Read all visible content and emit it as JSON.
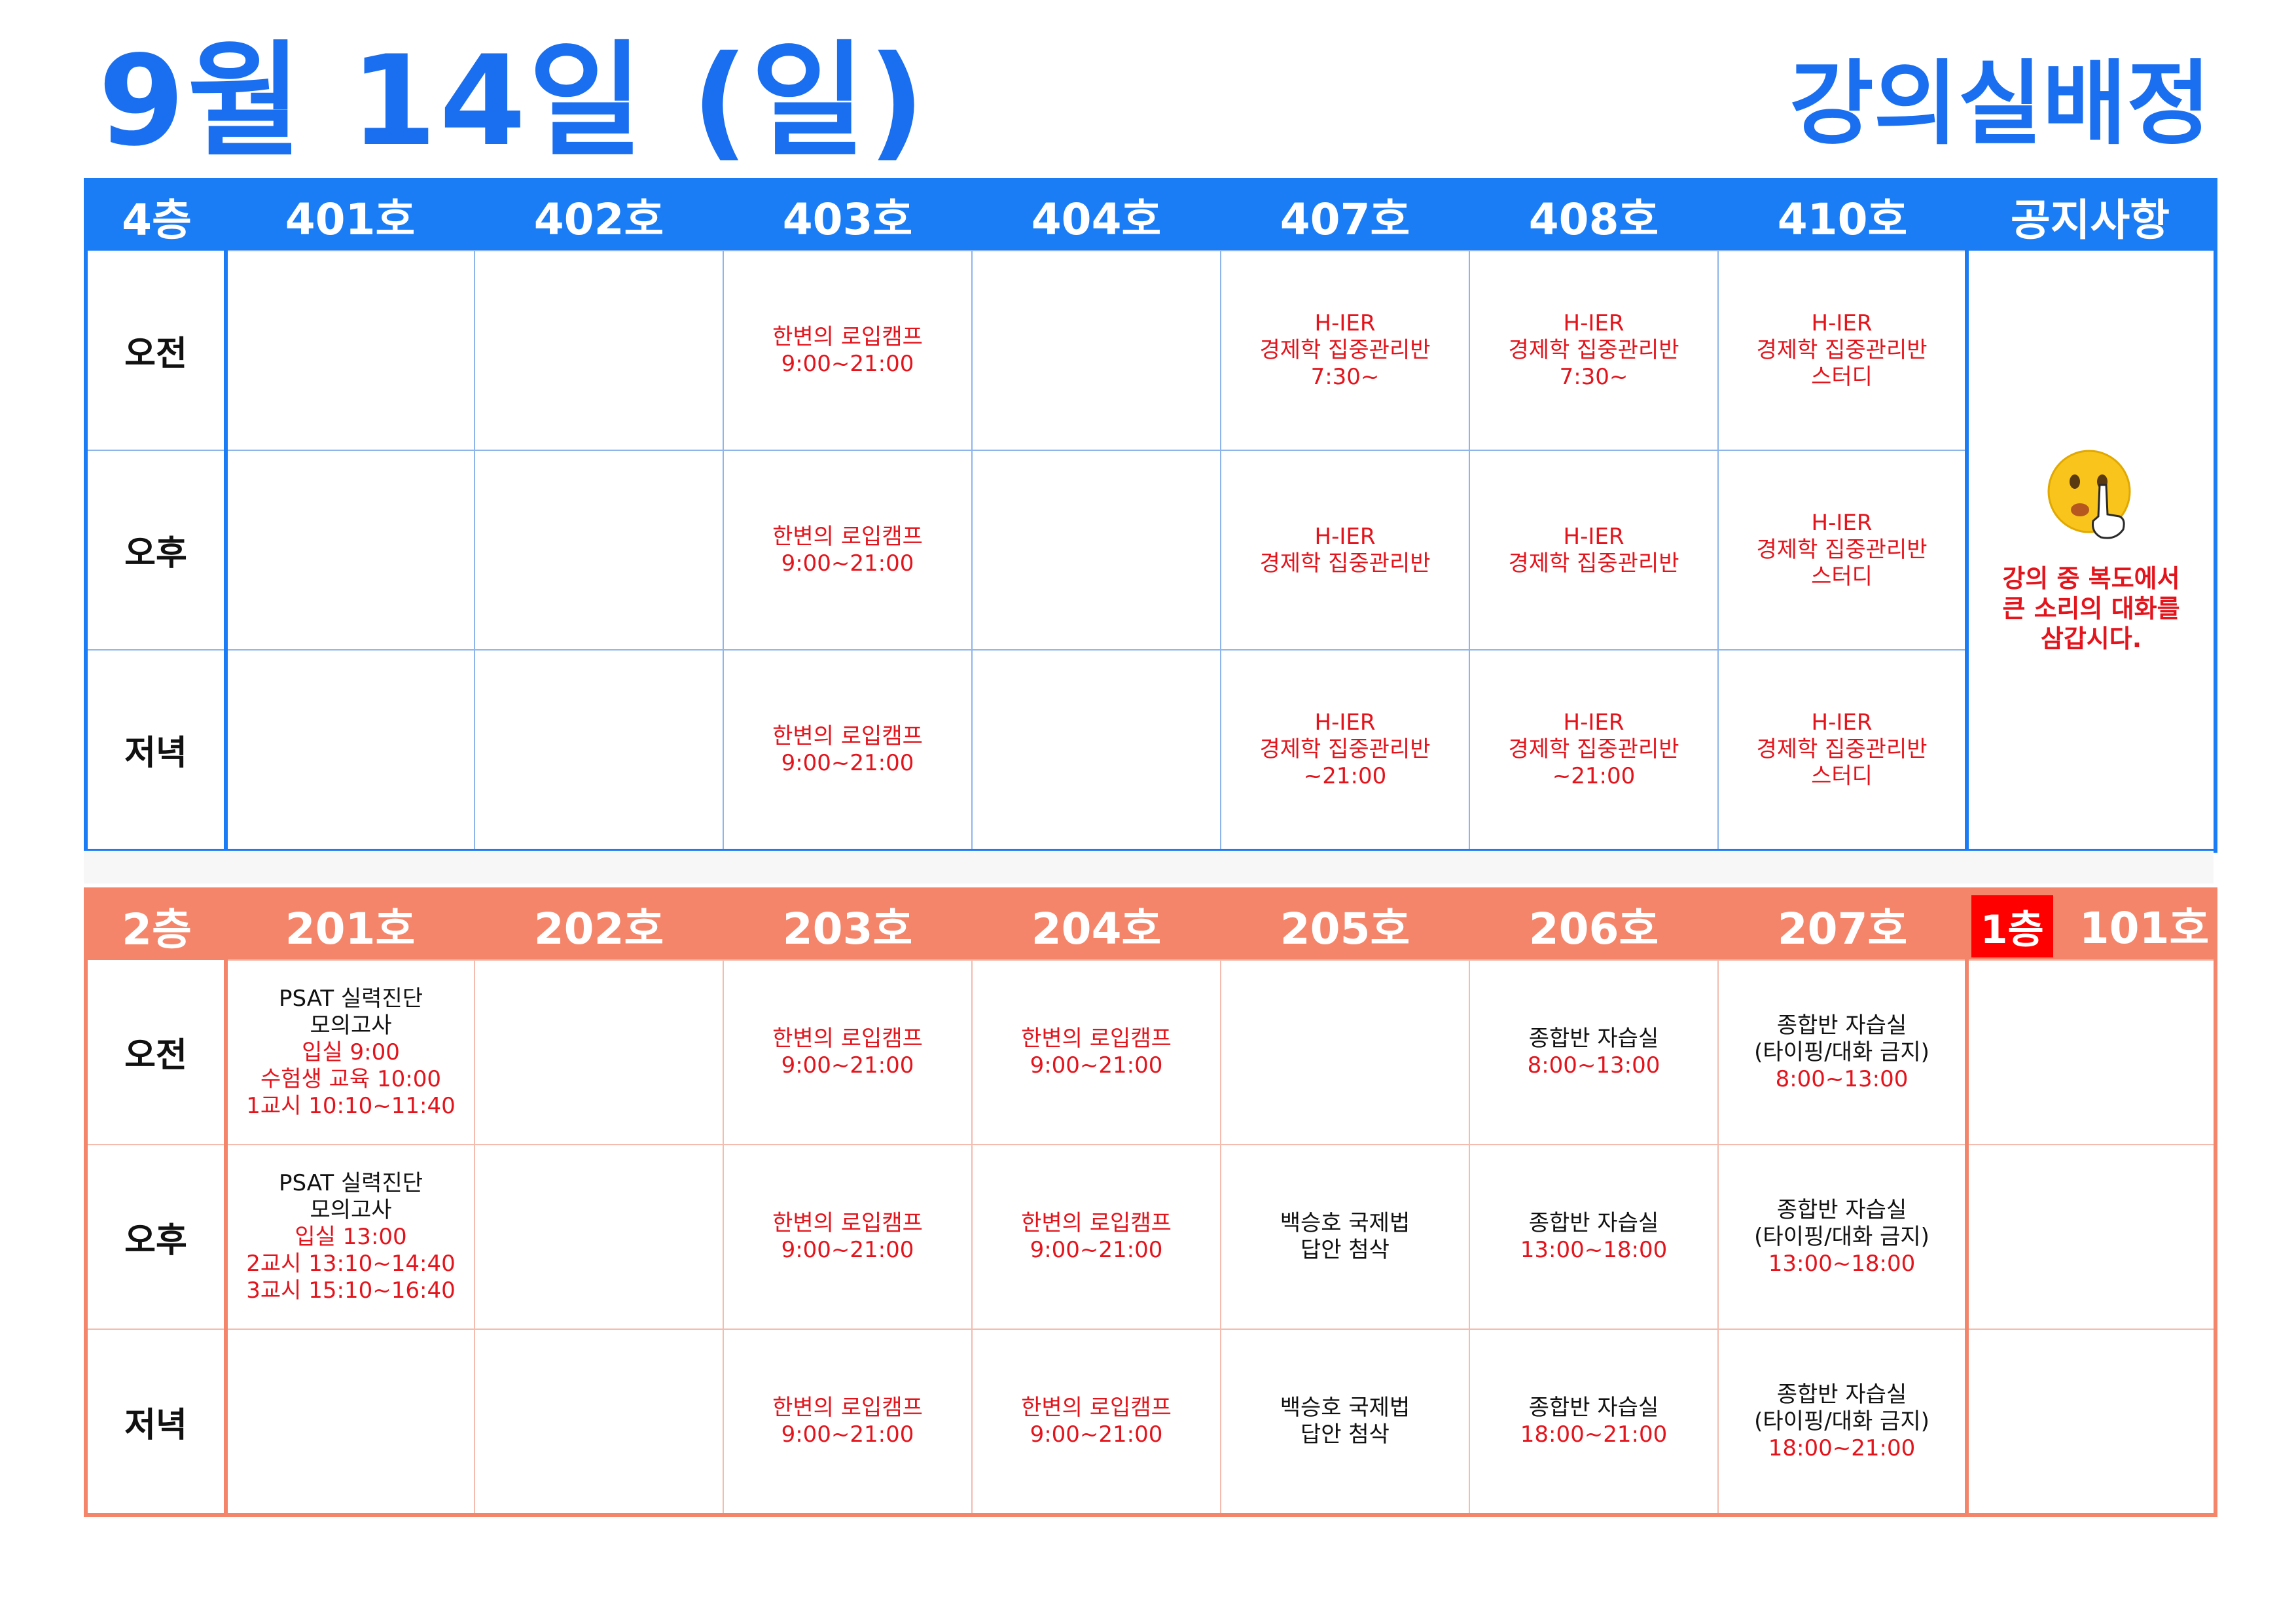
{
  "header": {
    "date": "9월 14일 (일)",
    "title": "강의실배정"
  },
  "floor4": {
    "label": "4층",
    "rooms": [
      "401호",
      "402호",
      "403호",
      "404호",
      "407호",
      "408호",
      "410호"
    ],
    "notice_header": "공지사항",
    "notice_text": "강의 중 복도에서\n큰 소리의 대화를\n삼갑시다.",
    "rows": [
      {
        "period": "오전",
        "cells": [
          {
            "lines": []
          },
          {
            "lines": []
          },
          {
            "lines": [
              {
                "t": "한변의 로입캠프",
                "c": "red"
              },
              {
                "t": "9:00~21:00",
                "c": "red"
              }
            ]
          },
          {
            "lines": []
          },
          {
            "lines": [
              {
                "t": "H-IER",
                "c": "red"
              },
              {
                "t": "경제학 집중관리반",
                "c": "red"
              },
              {
                "t": "7:30~",
                "c": "red"
              }
            ]
          },
          {
            "lines": [
              {
                "t": "H-IER",
                "c": "red"
              },
              {
                "t": "경제학 집중관리반",
                "c": "red"
              },
              {
                "t": "7:30~",
                "c": "red"
              }
            ]
          },
          {
            "lines": [
              {
                "t": "H-IER",
                "c": "red"
              },
              {
                "t": "경제학 집중관리반",
                "c": "red"
              },
              {
                "t": "스터디",
                "c": "red"
              }
            ]
          }
        ]
      },
      {
        "period": "오후",
        "cells": [
          {
            "lines": []
          },
          {
            "lines": []
          },
          {
            "lines": [
              {
                "t": "한변의 로입캠프",
                "c": "red"
              },
              {
                "t": "9:00~21:00",
                "c": "red"
              }
            ]
          },
          {
            "lines": []
          },
          {
            "lines": [
              {
                "t": "H-IER",
                "c": "red"
              },
              {
                "t": "경제학 집중관리반",
                "c": "red"
              }
            ]
          },
          {
            "lines": [
              {
                "t": "H-IER",
                "c": "red"
              },
              {
                "t": "경제학 집중관리반",
                "c": "red"
              }
            ]
          },
          {
            "lines": [
              {
                "t": "H-IER",
                "c": "red"
              },
              {
                "t": "경제학 집중관리반",
                "c": "red"
              },
              {
                "t": "스터디",
                "c": "red"
              }
            ]
          }
        ]
      },
      {
        "period": "저녁",
        "cells": [
          {
            "lines": []
          },
          {
            "lines": []
          },
          {
            "lines": [
              {
                "t": "한변의 로입캠프",
                "c": "red"
              },
              {
                "t": "9:00~21:00",
                "c": "red"
              }
            ]
          },
          {
            "lines": []
          },
          {
            "lines": [
              {
                "t": "H-IER",
                "c": "red"
              },
              {
                "t": "경제학 집중관리반",
                "c": "red"
              },
              {
                "t": "~21:00",
                "c": "red"
              }
            ]
          },
          {
            "lines": [
              {
                "t": "H-IER",
                "c": "red"
              },
              {
                "t": "경제학 집중관리반",
                "c": "red"
              },
              {
                "t": "~21:00",
                "c": "red"
              }
            ]
          },
          {
            "lines": [
              {
                "t": "H-IER",
                "c": "red"
              },
              {
                "t": "경제학 집중관리반",
                "c": "red"
              },
              {
                "t": "스터디",
                "c": "red"
              }
            ]
          }
        ]
      }
    ]
  },
  "floor2": {
    "label": "2층",
    "rooms": [
      "201호",
      "202호",
      "203호",
      "204호",
      "205호",
      "206호",
      "207호"
    ],
    "floor1_label": "1층",
    "floor1_room": "101호",
    "rows": [
      {
        "period": "오전",
        "cells": [
          {
            "lines": [
              {
                "t": "PSAT 실력진단",
                "c": "black"
              },
              {
                "t": "모의고사",
                "c": "black"
              },
              {
                "t": "입실 9:00",
                "c": "red"
              },
              {
                "t": "수험생 교육 10:00",
                "c": "red"
              },
              {
                "t": "1교시 10:10~11:40",
                "c": "red"
              }
            ]
          },
          {
            "lines": []
          },
          {
            "lines": [
              {
                "t": "한변의 로입캠프",
                "c": "red"
              },
              {
                "t": "9:00~21:00",
                "c": "red"
              }
            ]
          },
          {
            "lines": [
              {
                "t": "한변의 로입캠프",
                "c": "red"
              },
              {
                "t": "9:00~21:00",
                "c": "red"
              }
            ]
          },
          {
            "lines": []
          },
          {
            "lines": [
              {
                "t": "종합반 자습실",
                "c": "black"
              },
              {
                "t": "8:00~13:00",
                "c": "red"
              }
            ]
          },
          {
            "lines": [
              {
                "t": "종합반 자습실",
                "c": "black"
              },
              {
                "t": "(타이핑/대화 금지)",
                "c": "black"
              },
              {
                "t": "8:00~13:00",
                "c": "red"
              }
            ]
          },
          {
            "lines": []
          }
        ]
      },
      {
        "period": "오후",
        "cells": [
          {
            "lines": [
              {
                "t": "PSAT 실력진단",
                "c": "black"
              },
              {
                "t": "모의고사",
                "c": "black"
              },
              {
                "t": "입실 13:00",
                "c": "red"
              },
              {
                "t": "2교시 13:10~14:40",
                "c": "red"
              },
              {
                "t": "3교시 15:10~16:40",
                "c": "red"
              }
            ]
          },
          {
            "lines": []
          },
          {
            "lines": [
              {
                "t": "한변의 로입캠프",
                "c": "red"
              },
              {
                "t": "9:00~21:00",
                "c": "red"
              }
            ]
          },
          {
            "lines": [
              {
                "t": "한변의 로입캠프",
                "c": "red"
              },
              {
                "t": "9:00~21:00",
                "c": "red"
              }
            ]
          },
          {
            "lines": [
              {
                "t": "백승호 국제법",
                "c": "black"
              },
              {
                "t": "답안 첨삭",
                "c": "black"
              }
            ]
          },
          {
            "lines": [
              {
                "t": "종합반 자습실",
                "c": "black"
              },
              {
                "t": "13:00~18:00",
                "c": "red"
              }
            ]
          },
          {
            "lines": [
              {
                "t": "종합반 자습실",
                "c": "black"
              },
              {
                "t": "(타이핑/대화 금지)",
                "c": "black"
              },
              {
                "t": "13:00~18:00",
                "c": "red"
              }
            ]
          },
          {
            "lines": []
          }
        ]
      },
      {
        "period": "저녁",
        "cells": [
          {
            "lines": []
          },
          {
            "lines": []
          },
          {
            "lines": [
              {
                "t": "한변의 로입캠프",
                "c": "red"
              },
              {
                "t": "9:00~21:00",
                "c": "red"
              }
            ]
          },
          {
            "lines": [
              {
                "t": "한변의 로입캠프",
                "c": "red"
              },
              {
                "t": "9:00~21:00",
                "c": "red"
              }
            ]
          },
          {
            "lines": [
              {
                "t": "백승호 국제법",
                "c": "black"
              },
              {
                "t": "답안 첨삭",
                "c": "black"
              }
            ]
          },
          {
            "lines": [
              {
                "t": "종합반 자습실",
                "c": "black"
              },
              {
                "t": "18:00~21:00",
                "c": "red"
              }
            ]
          },
          {
            "lines": [
              {
                "t": "종합반 자습실",
                "c": "black"
              },
              {
                "t": "(타이핑/대화 금지)",
                "c": "black"
              },
              {
                "t": "18:00~21:00",
                "c": "red"
              }
            ]
          },
          {
            "lines": []
          }
        ]
      }
    ]
  }
}
